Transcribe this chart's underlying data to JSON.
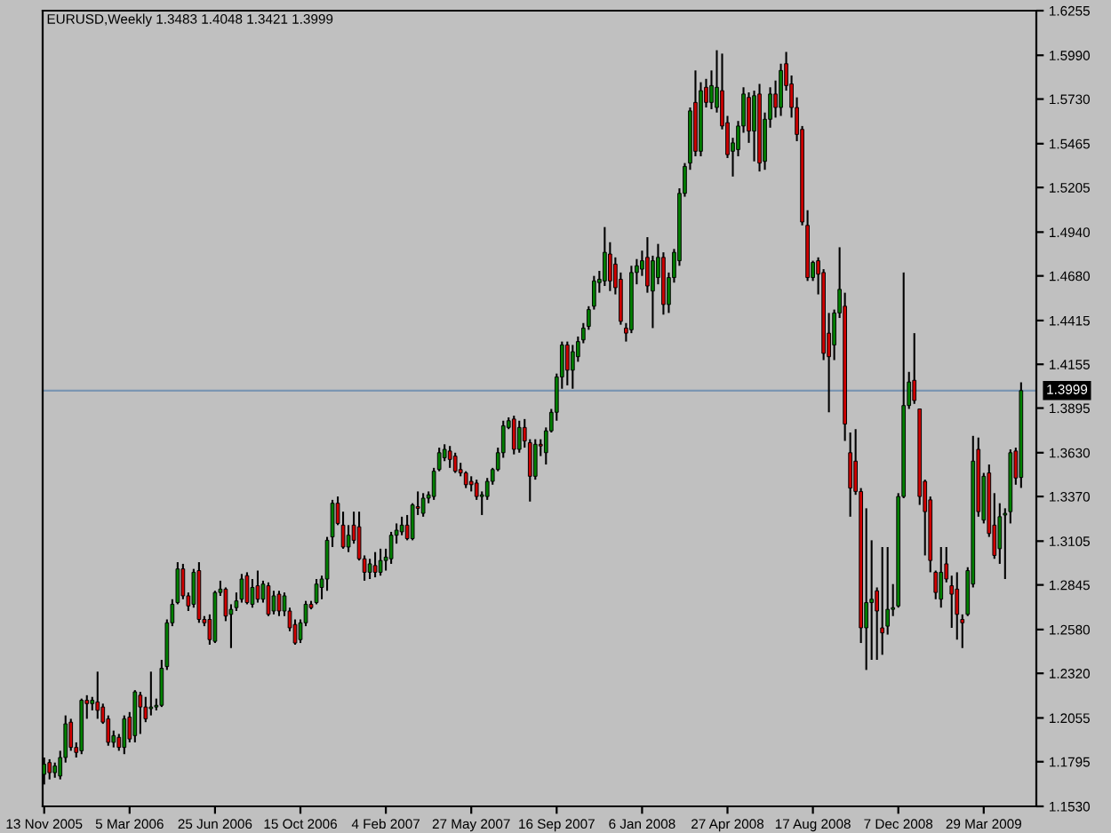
{
  "chart_data": {
    "type": "candlestick",
    "title": "EURUSD,Weekly 1.3483 1.4048 1.3421 1.3999",
    "x": [
      "2005-11-13",
      "2005-11-20",
      "2005-11-27",
      "2005-12-04",
      "2005-12-11",
      "2005-12-18",
      "2005-12-25",
      "2006-01-01",
      "2006-01-08",
      "2006-01-15",
      "2006-01-22",
      "2006-01-29",
      "2006-02-05",
      "2006-02-12",
      "2006-02-19",
      "2006-02-26",
      "2006-03-05",
      "2006-03-12",
      "2006-03-19",
      "2006-03-26",
      "2006-04-02",
      "2006-04-09",
      "2006-04-16",
      "2006-04-23",
      "2006-04-30",
      "2006-05-07",
      "2006-05-14",
      "2006-05-21",
      "2006-05-28",
      "2006-06-04",
      "2006-06-11",
      "2006-06-18",
      "2006-06-25",
      "2006-07-02",
      "2006-07-09",
      "2006-07-16",
      "2006-07-23",
      "2006-07-30",
      "2006-08-06",
      "2006-08-13",
      "2006-08-20",
      "2006-08-27",
      "2006-09-03",
      "2006-09-10",
      "2006-09-17",
      "2006-09-24",
      "2006-10-01",
      "2006-10-08",
      "2006-10-15",
      "2006-10-22",
      "2006-10-29",
      "2006-11-05",
      "2006-11-12",
      "2006-11-19",
      "2006-11-26",
      "2006-12-03",
      "2006-12-10",
      "2006-12-17",
      "2006-12-24",
      "2006-12-31",
      "2007-01-07",
      "2007-01-14",
      "2007-01-21",
      "2007-01-28",
      "2007-02-04",
      "2007-02-11",
      "2007-02-18",
      "2007-02-25",
      "2007-03-04",
      "2007-03-11",
      "2007-03-18",
      "2007-03-25",
      "2007-04-01",
      "2007-04-08",
      "2007-04-15",
      "2007-04-22",
      "2007-04-29",
      "2007-05-06",
      "2007-05-13",
      "2007-05-20",
      "2007-05-27",
      "2007-06-03",
      "2007-06-10",
      "2007-06-17",
      "2007-06-24",
      "2007-07-01",
      "2007-07-08",
      "2007-07-15",
      "2007-07-22",
      "2007-07-29",
      "2007-08-05",
      "2007-08-12",
      "2007-08-19",
      "2007-08-26",
      "2007-09-02",
      "2007-09-09",
      "2007-09-16",
      "2007-09-23",
      "2007-09-30",
      "2007-10-07",
      "2007-10-14",
      "2007-10-21",
      "2007-10-28",
      "2007-11-04",
      "2007-11-11",
      "2007-11-18",
      "2007-11-25",
      "2007-12-02",
      "2007-12-09",
      "2007-12-16",
      "2007-12-23",
      "2007-12-30",
      "2008-01-06",
      "2008-01-13",
      "2008-01-20",
      "2008-01-27",
      "2008-02-03",
      "2008-02-10",
      "2008-02-17",
      "2008-02-24",
      "2008-03-02",
      "2008-03-09",
      "2008-03-16",
      "2008-03-23",
      "2008-03-30",
      "2008-04-06",
      "2008-04-13",
      "2008-04-20",
      "2008-04-27",
      "2008-05-04",
      "2008-05-11",
      "2008-05-18",
      "2008-05-25",
      "2008-06-01",
      "2008-06-08",
      "2008-06-15",
      "2008-06-22",
      "2008-06-29",
      "2008-07-06",
      "2008-07-13",
      "2008-07-20",
      "2008-07-27",
      "2008-08-03",
      "2008-08-10",
      "2008-08-17",
      "2008-08-24",
      "2008-08-31",
      "2008-09-07",
      "2008-09-14",
      "2008-09-21",
      "2008-09-28",
      "2008-10-05",
      "2008-10-12",
      "2008-10-19",
      "2008-10-26",
      "2008-11-02",
      "2008-11-09",
      "2008-11-16",
      "2008-11-23",
      "2008-11-30",
      "2008-12-07",
      "2008-12-14",
      "2008-12-21",
      "2008-12-28",
      "2009-01-04",
      "2009-01-11",
      "2009-01-18",
      "2009-01-25",
      "2009-02-01",
      "2009-02-08",
      "2009-02-15",
      "2009-02-22",
      "2009-03-01",
      "2009-03-08",
      "2009-03-15",
      "2009-03-22",
      "2009-03-29",
      "2009-04-05",
      "2009-04-12",
      "2009-04-19",
      "2009-04-26",
      "2009-05-03",
      "2009-05-10",
      "2009-05-17"
    ],
    "ohlc": [
      [
        1.172,
        1.182,
        1.166,
        1.178
      ],
      [
        1.179,
        1.181,
        1.169,
        1.173
      ],
      [
        1.173,
        1.179,
        1.17,
        1.177
      ],
      [
        1.171,
        1.186,
        1.169,
        1.182
      ],
      [
        1.182,
        1.207,
        1.179,
        1.202
      ],
      [
        1.203,
        1.205,
        1.186,
        1.188
      ],
      [
        1.188,
        1.191,
        1.182,
        1.185
      ],
      [
        1.186,
        1.217,
        1.184,
        1.216
      ],
      [
        1.216,
        1.219,
        1.205,
        1.214
      ],
      [
        1.214,
        1.218,
        1.21,
        1.216
      ],
      [
        1.215,
        1.233,
        1.205,
        1.21
      ],
      [
        1.212,
        1.214,
        1.202,
        1.203
      ],
      [
        1.205,
        1.207,
        1.189,
        1.191
      ],
      [
        1.191,
        1.198,
        1.188,
        1.195
      ],
      [
        1.194,
        1.196,
        1.186,
        1.188
      ],
      [
        1.188,
        1.207,
        1.184,
        1.205
      ],
      [
        1.206,
        1.209,
        1.191,
        1.193
      ],
      [
        1.195,
        1.222,
        1.191,
        1.221
      ],
      [
        1.219,
        1.221,
        1.196,
        1.212
      ],
      [
        1.212,
        1.218,
        1.203,
        1.205
      ],
      [
        1.211,
        1.233,
        1.207,
        1.212
      ],
      [
        1.212,
        1.217,
        1.21,
        1.213
      ],
      [
        1.213,
        1.24,
        1.212,
        1.235
      ],
      [
        1.236,
        1.264,
        1.234,
        1.262
      ],
      [
        1.262,
        1.276,
        1.26,
        1.273
      ],
      [
        1.274,
        1.298,
        1.273,
        1.294
      ],
      [
        1.294,
        1.297,
        1.276,
        1.278
      ],
      [
        1.278,
        1.28,
        1.269,
        1.272
      ],
      [
        1.273,
        1.294,
        1.271,
        1.292
      ],
      [
        1.293,
        1.298,
        1.262,
        1.264
      ],
      [
        1.264,
        1.266,
        1.26,
        1.262
      ],
      [
        1.264,
        1.267,
        1.249,
        1.252
      ],
      [
        1.251,
        1.281,
        1.25,
        1.28
      ],
      [
        1.28,
        1.287,
        1.278,
        1.282
      ],
      [
        1.282,
        1.283,
        1.263,
        1.266
      ],
      [
        1.267,
        1.273,
        1.247,
        1.27
      ],
      [
        1.271,
        1.28,
        1.269,
        1.275
      ],
      [
        1.276,
        1.291,
        1.274,
        1.288
      ],
      [
        1.29,
        1.292,
        1.273,
        1.274
      ],
      [
        1.273,
        1.288,
        1.271,
        1.283
      ],
      [
        1.284,
        1.293,
        1.274,
        1.276
      ],
      [
        1.276,
        1.287,
        1.274,
        1.285
      ],
      [
        1.284,
        1.286,
        1.266,
        1.267
      ],
      [
        1.269,
        1.281,
        1.267,
        1.278
      ],
      [
        1.279,
        1.281,
        1.266,
        1.269
      ],
      [
        1.269,
        1.28,
        1.266,
        1.278
      ],
      [
        1.269,
        1.271,
        1.257,
        1.259
      ],
      [
        1.261,
        1.264,
        1.249,
        1.25
      ],
      [
        1.252,
        1.264,
        1.25,
        1.262
      ],
      [
        1.262,
        1.275,
        1.26,
        1.273
      ],
      [
        1.273,
        1.275,
        1.27,
        1.271
      ],
      [
        1.274,
        1.288,
        1.273,
        1.285
      ],
      [
        1.283,
        1.29,
        1.276,
        1.288
      ],
      [
        1.288,
        1.313,
        1.281,
        1.311
      ],
      [
        1.313,
        1.335,
        1.307,
        1.333
      ],
      [
        1.333,
        1.337,
        1.32,
        1.321
      ],
      [
        1.32,
        1.328,
        1.306,
        1.307
      ],
      [
        1.307,
        1.32,
        1.304,
        1.314
      ],
      [
        1.32,
        1.328,
        1.309,
        1.311
      ],
      [
        1.319,
        1.328,
        1.299,
        1.3
      ],
      [
        1.3,
        1.302,
        1.287,
        1.292
      ],
      [
        1.292,
        1.3,
        1.288,
        1.297
      ],
      [
        1.296,
        1.304,
        1.289,
        1.292
      ],
      [
        1.292,
        1.306,
        1.29,
        1.299
      ],
      [
        1.299,
        1.306,
        1.293,
        1.301
      ],
      [
        1.3,
        1.316,
        1.297,
        1.314
      ],
      [
        1.314,
        1.321,
        1.309,
        1.317
      ],
      [
        1.316,
        1.325,
        1.314,
        1.32
      ],
      [
        1.32,
        1.326,
        1.311,
        1.312
      ],
      [
        1.312,
        1.333,
        1.311,
        1.332
      ],
      [
        1.331,
        1.34,
        1.326,
        1.33
      ],
      [
        1.327,
        1.339,
        1.325,
        1.336
      ],
      [
        1.336,
        1.34,
        1.333,
        1.338
      ],
      [
        1.337,
        1.354,
        1.335,
        1.352
      ],
      [
        1.353,
        1.366,
        1.352,
        1.363
      ],
      [
        1.36,
        1.368,
        1.358,
        1.365
      ],
      [
        1.364,
        1.367,
        1.354,
        1.359
      ],
      [
        1.361,
        1.363,
        1.351,
        1.352
      ],
      [
        1.353,
        1.357,
        1.349,
        1.351
      ],
      [
        1.351,
        1.352,
        1.342,
        1.344
      ],
      [
        1.346,
        1.349,
        1.34,
        1.344
      ],
      [
        1.345,
        1.347,
        1.335,
        1.337
      ],
      [
        1.337,
        1.34,
        1.326,
        1.338
      ],
      [
        1.337,
        1.348,
        1.335,
        1.346
      ],
      [
        1.346,
        1.354,
        1.344,
        1.353
      ],
      [
        1.353,
        1.366,
        1.352,
        1.363
      ],
      [
        1.363,
        1.382,
        1.36,
        1.379
      ],
      [
        1.378,
        1.384,
        1.377,
        1.382
      ],
      [
        1.383,
        1.385,
        1.362,
        1.365
      ],
      [
        1.365,
        1.382,
        1.363,
        1.378
      ],
      [
        1.378,
        1.383,
        1.366,
        1.37
      ],
      [
        1.369,
        1.371,
        1.334,
        1.349
      ],
      [
        1.349,
        1.371,
        1.347,
        1.368
      ],
      [
        1.368,
        1.371,
        1.361,
        1.367
      ],
      [
        1.363,
        1.378,
        1.356,
        1.376
      ],
      [
        1.376,
        1.389,
        1.375,
        1.387
      ],
      [
        1.387,
        1.41,
        1.382,
        1.408
      ],
      [
        1.408,
        1.429,
        1.401,
        1.427
      ],
      [
        1.427,
        1.429,
        1.403,
        1.412
      ],
      [
        1.412,
        1.427,
        1.401,
        1.423
      ],
      [
        1.42,
        1.432,
        1.417,
        1.429
      ],
      [
        1.43,
        1.44,
        1.428,
        1.437
      ],
      [
        1.438,
        1.45,
        1.436,
        1.448
      ],
      [
        1.45,
        1.468,
        1.448,
        1.465
      ],
      [
        1.464,
        1.471,
        1.458,
        1.466
      ],
      [
        1.465,
        1.497,
        1.462,
        1.482
      ],
      [
        1.481,
        1.488,
        1.459,
        1.465
      ],
      [
        1.475,
        1.479,
        1.457,
        1.461
      ],
      [
        1.466,
        1.47,
        1.439,
        1.441
      ],
      [
        1.437,
        1.44,
        1.429,
        1.434
      ],
      [
        1.436,
        1.474,
        1.434,
        1.47
      ],
      [
        1.47,
        1.478,
        1.463,
        1.474
      ],
      [
        1.472,
        1.483,
        1.468,
        1.477
      ],
      [
        1.479,
        1.491,
        1.458,
        1.462
      ],
      [
        1.459,
        1.48,
        1.437,
        1.477
      ],
      [
        1.467,
        1.487,
        1.463,
        1.479
      ],
      [
        1.479,
        1.482,
        1.445,
        1.451
      ],
      [
        1.451,
        1.47,
        1.446,
        1.467
      ],
      [
        1.467,
        1.484,
        1.464,
        1.482
      ],
      [
        1.477,
        1.52,
        1.474,
        1.517
      ],
      [
        1.517,
        1.535,
        1.515,
        1.533
      ],
      [
        1.535,
        1.568,
        1.531,
        1.566
      ],
      [
        1.571,
        1.59,
        1.539,
        1.542
      ],
      [
        1.542,
        1.583,
        1.539,
        1.578
      ],
      [
        1.58,
        1.585,
        1.568,
        1.571
      ],
      [
        1.571,
        1.59,
        1.567,
        1.581
      ],
      [
        1.568,
        1.602,
        1.565,
        1.58
      ],
      [
        1.578,
        1.6,
        1.555,
        1.557
      ],
      [
        1.559,
        1.563,
        1.538,
        1.54
      ],
      [
        1.542,
        1.55,
        1.527,
        1.547
      ],
      [
        1.543,
        1.56,
        1.539,
        1.557
      ],
      [
        1.557,
        1.58,
        1.553,
        1.576
      ],
      [
        1.574,
        1.577,
        1.547,
        1.554
      ],
      [
        1.554,
        1.578,
        1.536,
        1.575
      ],
      [
        1.576,
        1.582,
        1.53,
        1.535
      ],
      [
        1.536,
        1.565,
        1.531,
        1.561
      ],
      [
        1.561,
        1.58,
        1.556,
        1.576
      ],
      [
        1.576,
        1.584,
        1.562,
        1.568
      ],
      [
        1.568,
        1.594,
        1.563,
        1.59
      ],
      [
        1.594,
        1.601,
        1.578,
        1.581
      ],
      [
        1.582,
        1.587,
        1.562,
        1.568
      ],
      [
        1.568,
        1.574,
        1.548,
        1.552
      ],
      [
        1.555,
        1.557,
        1.498,
        1.5
      ],
      [
        1.498,
        1.507,
        1.465,
        1.467
      ],
      [
        1.467,
        1.477,
        1.465,
        1.476
      ],
      [
        1.477,
        1.479,
        1.457,
        1.469
      ],
      [
        1.47,
        1.472,
        1.418,
        1.422
      ],
      [
        1.434,
        1.446,
        1.387,
        1.42
      ],
      [
        1.427,
        1.448,
        1.418,
        1.446
      ],
      [
        1.446,
        1.485,
        1.443,
        1.46
      ],
      [
        1.45,
        1.458,
        1.37,
        1.38
      ],
      [
        1.363,
        1.375,
        1.325,
        1.342
      ],
      [
        1.358,
        1.377,
        1.338,
        1.34
      ],
      [
        1.34,
        1.342,
        1.25,
        1.259
      ],
      [
        1.259,
        1.33,
        1.234,
        1.274
      ],
      [
        1.274,
        1.311,
        1.24,
        1.276
      ],
      [
        1.281,
        1.283,
        1.24,
        1.269
      ],
      [
        1.259,
        1.307,
        1.243,
        1.256
      ],
      [
        1.26,
        1.307,
        1.255,
        1.27
      ],
      [
        1.27,
        1.285,
        1.266,
        1.271
      ],
      [
        1.272,
        1.339,
        1.271,
        1.337
      ],
      [
        1.337,
        1.47,
        1.336,
        1.391
      ],
      [
        1.391,
        1.411,
        1.389,
        1.405
      ],
      [
        1.406,
        1.434,
        1.392,
        1.394
      ],
      [
        1.389,
        1.389,
        1.332,
        1.337
      ],
      [
        1.346,
        1.347,
        1.302,
        1.328
      ],
      [
        1.335,
        1.337,
        1.292,
        1.299
      ],
      [
        1.292,
        1.293,
        1.276,
        1.28
      ],
      [
        1.276,
        1.307,
        1.271,
        1.292
      ],
      [
        1.297,
        1.307,
        1.286,
        1.288
      ],
      [
        1.284,
        1.29,
        1.259,
        1.279
      ],
      [
        1.282,
        1.292,
        1.252,
        1.267
      ],
      [
        1.264,
        1.267,
        1.247,
        1.262
      ],
      [
        1.267,
        1.295,
        1.266,
        1.293
      ],
      [
        1.285,
        1.373,
        1.283,
        1.358
      ],
      [
        1.365,
        1.372,
        1.325,
        1.328
      ],
      [
        1.323,
        1.351,
        1.321,
        1.349
      ],
      [
        1.351,
        1.356,
        1.313,
        1.315
      ],
      [
        1.32,
        1.339,
        1.3,
        1.302
      ],
      [
        1.306,
        1.333,
        1.297,
        1.325
      ],
      [
        1.326,
        1.33,
        1.288,
        1.327
      ],
      [
        1.328,
        1.365,
        1.321,
        1.363
      ],
      [
        1.364,
        1.366,
        1.344,
        1.348
      ],
      [
        1.3483,
        1.4048,
        1.3421,
        1.3999
      ]
    ],
    "colors": [
      "#008000",
      "#d00000",
      "#008000",
      "#008000",
      "#008000",
      "#d00000",
      "#d00000",
      "#008000",
      "#d00000",
      "#008000",
      "#d00000",
      "#d00000",
      "#d00000",
      "#008000",
      "#d00000",
      "#008000",
      "#d00000",
      "#008000",
      "#d00000",
      "#d00000",
      "#008000",
      "#008000",
      "#008000",
      "#008000",
      "#008000",
      "#008000",
      "#d00000",
      "#d00000",
      "#008000",
      "#d00000",
      "#d00000",
      "#d00000",
      "#008000",
      "#008000",
      "#d00000",
      "#008000",
      "#008000",
      "#008000",
      "#d00000",
      "#008000",
      "#d00000",
      "#008000",
      "#d00000",
      "#008000",
      "#d00000",
      "#008000",
      "#d00000",
      "#d00000",
      "#008000",
      "#008000",
      "#d00000",
      "#008000",
      "#008000",
      "#008000",
      "#008000",
      "#d00000",
      "#d00000",
      "#008000",
      "#d00000",
      "#d00000",
      "#d00000",
      "#008000",
      "#d00000",
      "#008000",
      "#008000",
      "#008000",
      "#008000",
      "#008000",
      "#d00000",
      "#008000",
      "#d00000",
      "#008000",
      "#008000",
      "#008000",
      "#008000",
      "#008000",
      "#d00000",
      "#d00000",
      "#d00000",
      "#d00000",
      "#d00000",
      "#d00000",
      "#008000",
      "#008000",
      "#008000",
      "#008000",
      "#008000",
      "#008000",
      "#d00000",
      "#008000",
      "#d00000",
      "#d00000",
      "#008000",
      "#d00000",
      "#008000",
      "#008000",
      "#008000",
      "#008000",
      "#d00000",
      "#008000",
      "#008000",
      "#008000",
      "#008000",
      "#008000",
      "#008000",
      "#008000",
      "#d00000",
      "#d00000",
      "#d00000",
      "#d00000",
      "#008000",
      "#008000",
      "#008000",
      "#d00000",
      "#008000",
      "#008000",
      "#d00000",
      "#008000",
      "#008000",
      "#008000",
      "#008000",
      "#008000",
      "#d00000",
      "#008000",
      "#d00000",
      "#008000",
      "#008000",
      "#d00000",
      "#d00000",
      "#008000",
      "#008000",
      "#008000",
      "#d00000",
      "#008000",
      "#d00000",
      "#008000",
      "#008000",
      "#d00000",
      "#008000",
      "#d00000",
      "#d00000",
      "#d00000",
      "#d00000",
      "#d00000",
      "#008000",
      "#d00000",
      "#d00000",
      "#d00000",
      "#008000",
      "#008000",
      "#d00000",
      "#d00000",
      "#d00000",
      "#d00000",
      "#008000",
      "#008000",
      "#d00000",
      "#d00000",
      "#008000",
      "#008000",
      "#008000",
      "#008000",
      "#008000",
      "#d00000",
      "#d00000",
      "#d00000",
      "#d00000",
      "#d00000",
      "#008000",
      "#d00000",
      "#d00000",
      "#d00000",
      "#d00000",
      "#008000",
      "#008000",
      "#d00000",
      "#008000",
      "#d00000",
      "#d00000",
      "#008000",
      "#008000",
      "#008000",
      "#d00000",
      "#008000"
    ],
    "xlim": [
      "2005-11-11",
      "2009-06-06"
    ],
    "xticks": [
      {
        "value": "2005-11-13",
        "label": "13 Nov 2005"
      },
      {
        "value": "2006-03-05",
        "label": "5 Mar 2006"
      },
      {
        "value": "2006-06-25",
        "label": "25 Jun 2006"
      },
      {
        "value": "2006-10-15",
        "label": "15 Oct 2006"
      },
      {
        "value": "2007-02-04",
        "label": "4 Feb 2007"
      },
      {
        "value": "2007-05-27",
        "label": "27 May 2007"
      },
      {
        "value": "2007-09-16",
        "label": "16 Sep 2007"
      },
      {
        "value": "2008-01-06",
        "label": "6 Jan 2008"
      },
      {
        "value": "2008-04-27",
        "label": "27 Apr 2008"
      },
      {
        "value": "2008-08-17",
        "label": "17 Aug 2008"
      },
      {
        "value": "2008-12-07",
        "label": "7 Dec 2008"
      },
      {
        "value": "2009-03-29",
        "label": "29 Mar 2009"
      }
    ],
    "ylim": [
      1.153,
      1.6255
    ],
    "yticks": [
      {
        "value": 1.153,
        "label": "1.1530"
      },
      1.1795,
      1.2055,
      {
        "value": 1.232,
        "label": "1.2320"
      },
      {
        "value": 1.258,
        "label": "1.2580"
      },
      1.2845,
      1.3105,
      {
        "value": 1.337,
        "label": "1.3370"
      },
      {
        "value": 1.363,
        "label": "1.3630"
      },
      1.3895,
      1.4155,
      1.4415,
      {
        "value": 1.468,
        "label": "1.4680"
      },
      {
        "value": 1.494,
        "label": "1.4940"
      },
      1.5205,
      1.5465,
      {
        "value": 1.573,
        "label": "1.5730"
      },
      {
        "value": 1.599,
        "label": "1.5990"
      },
      1.6255
    ],
    "ref_lines": [
      {
        "axis": "y",
        "value": 1.3999,
        "label": "1.3999",
        "color": "#7b96b2"
      }
    ]
  }
}
